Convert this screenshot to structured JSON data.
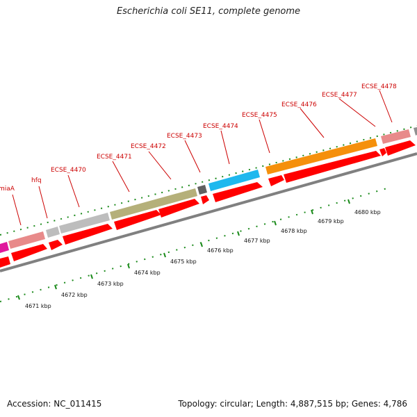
{
  "title": "Escherichia coli SE11, complete genome",
  "footer": {
    "accession": "Accession: NC_011415",
    "summary": "Topology: circular; Length: 4,887,515 bp; Genes: 4,786"
  },
  "colors": {
    "cds": "#ff0000",
    "gene_label": "#cc0000",
    "backbone": "#808080",
    "tick": "#1a8a1a"
  },
  "gene_labels": [
    {
      "id": "miaA",
      "text": "miaA"
    },
    {
      "id": "hfq",
      "text": "hfq"
    },
    {
      "id": "ECSE_4470",
      "text": "ECSE_4470"
    },
    {
      "id": "ECSE_4471",
      "text": "ECSE_4471"
    },
    {
      "id": "ECSE_4472",
      "text": "ECSE_4472"
    },
    {
      "id": "ECSE_4473",
      "text": "ECSE_4473"
    },
    {
      "id": "ECSE_4474",
      "text": "ECSE_4474"
    },
    {
      "id": "ECSE_4475",
      "text": "ECSE_4475"
    },
    {
      "id": "ECSE_4476",
      "text": "ECSE_4476"
    },
    {
      "id": "ECSE_4477",
      "text": "ECSE_4477"
    },
    {
      "id": "ECSE_4478",
      "text": "ECSE_4478"
    }
  ],
  "scale_labels": [
    "4671 kbp",
    "4672 kbp",
    "4673 kbp",
    "4674 kbp",
    "4675 kbp",
    "4676 kbp",
    "4677 kbp",
    "4678 kbp",
    "4679 kbp",
    "4680 kbp"
  ]
}
